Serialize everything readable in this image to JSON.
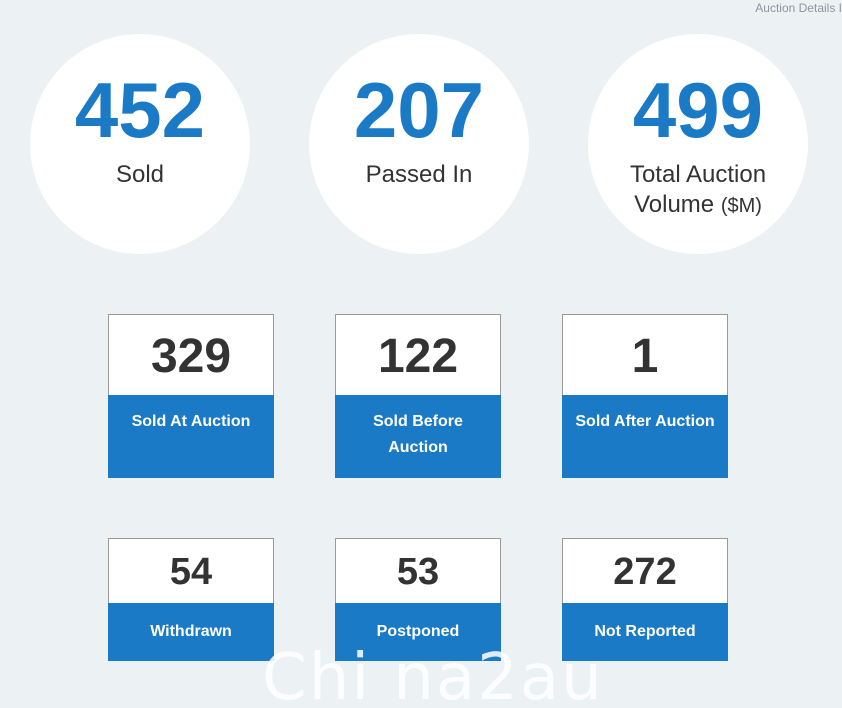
{
  "header": {
    "link_text": "Auction Details I"
  },
  "summary": [
    {
      "value": "452",
      "label": "Sold",
      "unit": ""
    },
    {
      "value": "207",
      "label": "Passed In",
      "unit": ""
    },
    {
      "value": "499",
      "label": "Total Auction Volume",
      "unit": "($M)"
    }
  ],
  "results": [
    {
      "value": "329",
      "label": "Sold At Auction"
    },
    {
      "value": "122",
      "label": "Sold Before Auction"
    },
    {
      "value": "1",
      "label": "Sold After Auction"
    },
    {
      "value": "54",
      "label": "Withdrawn"
    },
    {
      "value": "53",
      "label": "Postponed"
    },
    {
      "value": "272",
      "label": "Not Reported"
    }
  ],
  "watermark": "Chi na2au",
  "colors": {
    "accent": "#1a7ac6",
    "background": "#ecf1f4",
    "text": "#333333"
  }
}
